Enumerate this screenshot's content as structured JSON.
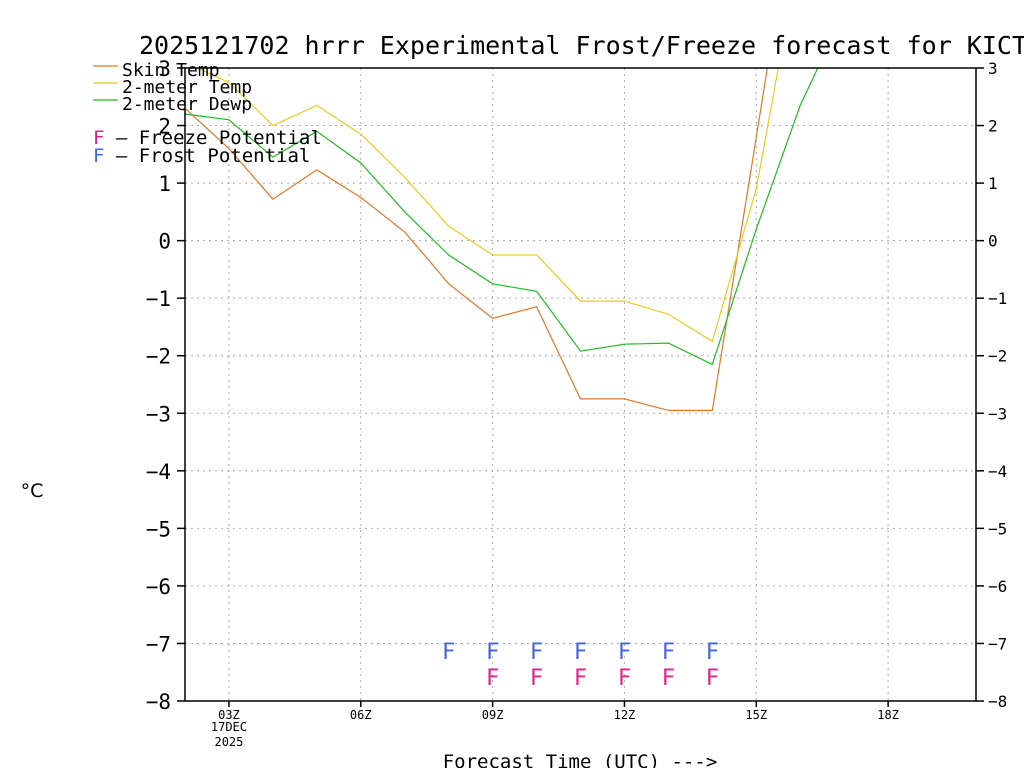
{
  "chart_data": {
    "type": "line",
    "title": "2025121702 hrrr Experimental Frost/Freeze forecast for KICT",
    "xlabel": "Forecast Time (UTC) --->",
    "ylabel": "°C",
    "ylim": [
      -8,
      3
    ],
    "xlim": [
      2,
      20
    ],
    "yticks": [
      -8,
      -7,
      -6,
      -5,
      -4,
      -3,
      -2,
      -1,
      0,
      1,
      2,
      3
    ],
    "xticks": [
      {
        "x": 3,
        "label": "03Z",
        "sub1": "17DEC",
        "sub2": "2025"
      },
      {
        "x": 6,
        "label": "06Z"
      },
      {
        "x": 9,
        "label": "09Z"
      },
      {
        "x": 12,
        "label": "12Z"
      },
      {
        "x": 15,
        "label": "15Z"
      },
      {
        "x": 18,
        "label": "18Z"
      }
    ],
    "grid": true,
    "series": [
      {
        "name": "Skin Temp",
        "color": "#e07828",
        "x": [
          2,
          3,
          4,
          5,
          6,
          7,
          8,
          9,
          10,
          11,
          12,
          13,
          14,
          15,
          15.25
        ],
        "values": [
          2.3,
          1.6,
          0.72,
          1.23,
          0.75,
          0.15,
          -0.75,
          -1.35,
          -1.15,
          -2.75,
          -2.75,
          -2.95,
          -2.95,
          1.8,
          3.0
        ]
      },
      {
        "name": "2-meter Temp",
        "color": "#e8cc20",
        "x": [
          2,
          3,
          4,
          5,
          6,
          7,
          8,
          9,
          10,
          11,
          12,
          13,
          14,
          15,
          15.5
        ],
        "values": [
          3.1,
          2.75,
          2.0,
          2.35,
          1.85,
          1.1,
          0.25,
          -0.25,
          -0.25,
          -1.05,
          -1.05,
          -1.28,
          -1.75,
          0.9,
          3.0
        ]
      },
      {
        "name": "2-meter Dewp",
        "color": "#22bb22",
        "x": [
          2,
          3,
          4,
          5,
          6,
          7,
          8,
          9,
          10,
          11,
          12,
          13,
          14,
          15,
          16,
          16.4
        ],
        "values": [
          2.2,
          2.1,
          1.45,
          1.9,
          1.35,
          0.5,
          -0.25,
          -0.75,
          -0.88,
          -1.92,
          -1.8,
          -1.78,
          -2.15,
          0.2,
          2.35,
          3.0
        ]
      }
    ],
    "legend": {
      "position": "top-left"
    },
    "potential_legend": [
      {
        "mark": "F",
        "text": " – Freeze Potential",
        "color": "#dd2288"
      },
      {
        "mark": "F",
        "text": " – Frost Potential",
        "color": "#4466dd"
      }
    ],
    "frost_potential": {
      "mark": "F",
      "color": "#4466dd",
      "y": -7.1,
      "x": [
        8,
        9,
        10,
        11,
        12,
        13,
        14
      ]
    },
    "freeze_potential": {
      "mark": "F",
      "color": "#dd2288",
      "y": -7.55,
      "x": [
        9,
        10,
        11,
        12,
        13,
        14
      ]
    }
  }
}
